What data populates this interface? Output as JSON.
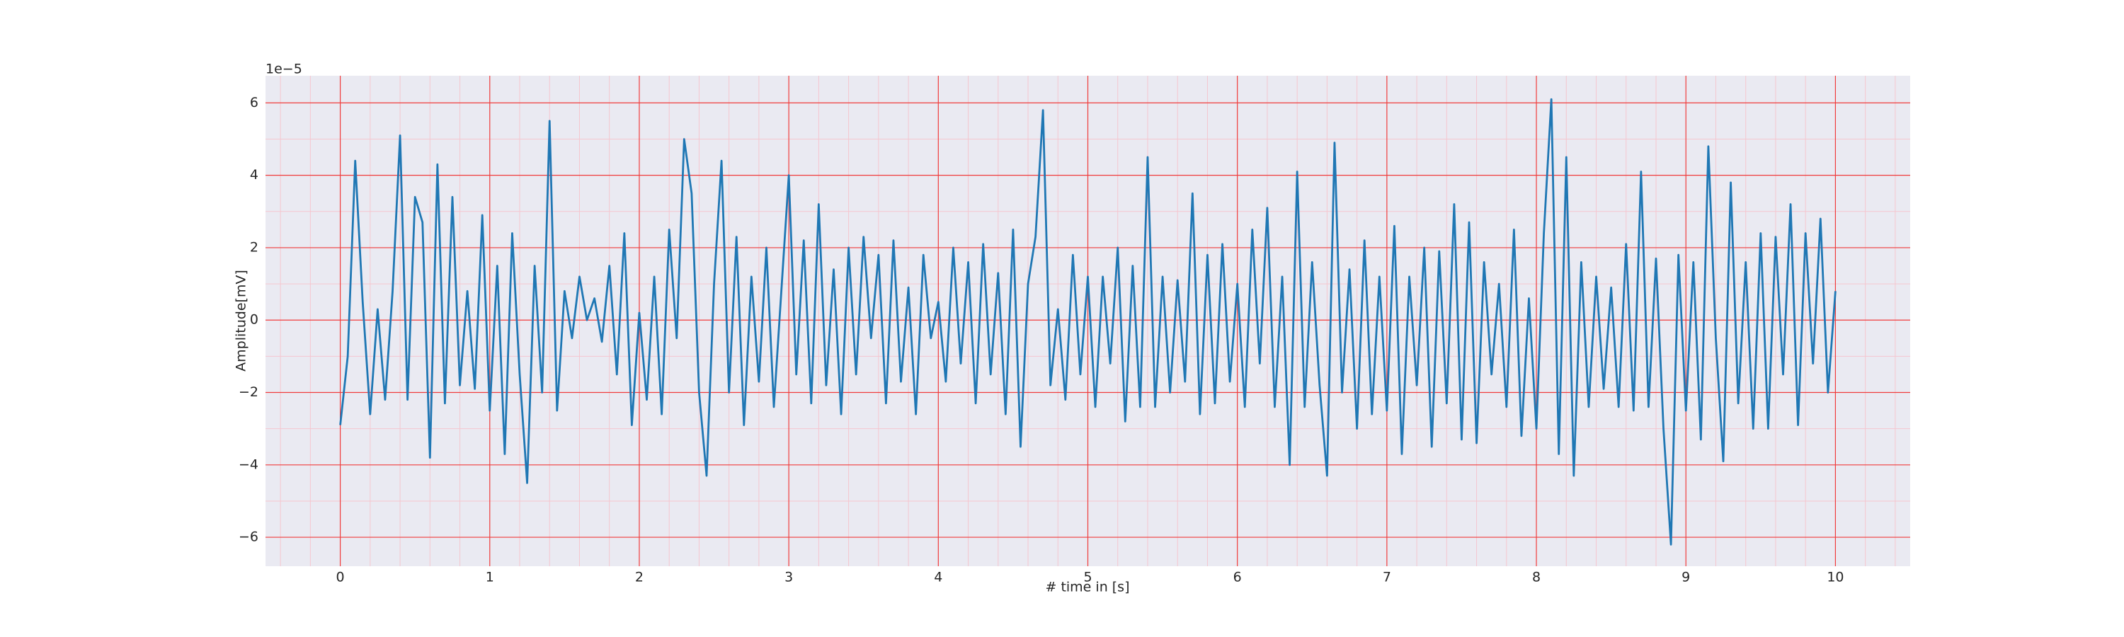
{
  "chart_data": {
    "type": "line",
    "xlabel": "# time in [s]",
    "ylabel": "Amplitude[mV]",
    "offset_text": "1e−5",
    "grid": true,
    "minor_grid": true,
    "xlim": [
      -0.5,
      10.5
    ],
    "ylim": [
      -6.8,
      6.75
    ],
    "xticks": [
      0,
      1,
      2,
      3,
      4,
      5,
      6,
      7,
      8,
      9,
      10
    ],
    "yticks": [
      {
        "value": -6,
        "label": "−6"
      },
      {
        "value": -4,
        "label": "−4"
      },
      {
        "value": -2,
        "label": "−2"
      },
      0,
      2,
      4,
      6
    ],
    "xminorticks": [
      -0.4,
      -0.2,
      0.2,
      0.4,
      0.6,
      0.8,
      1.2,
      1.4,
      1.6,
      1.8,
      2.2,
      2.4,
      2.6,
      2.8,
      3.2,
      3.4,
      3.6,
      3.8,
      4.2,
      4.4,
      4.6,
      4.8,
      5.2,
      5.4,
      5.6,
      5.8,
      6.2,
      6.4,
      6.6,
      6.8,
      7.2,
      7.4,
      7.6,
      7.8,
      8.2,
      8.4,
      8.6,
      8.8,
      9.2,
      9.4,
      9.6,
      9.8,
      10.2,
      10.4
    ],
    "yminorticks": [
      -5,
      -3,
      -1,
      1,
      3,
      5
    ],
    "series": [
      {
        "color": "#1f77b4",
        "x": [
          0,
          0.05,
          0.1,
          0.15,
          0.2,
          0.25,
          0.3,
          0.35,
          0.4,
          0.45,
          0.5,
          0.55,
          0.6,
          0.65,
          0.7,
          0.75,
          0.8,
          0.85,
          0.9,
          0.95,
          1,
          1.05,
          1.1,
          1.15,
          1.2,
          1.25,
          1.3,
          1.35,
          1.4,
          1.45,
          1.5,
          1.55,
          1.6,
          1.65,
          1.7,
          1.75,
          1.8,
          1.85,
          1.9,
          1.95,
          2,
          2.05,
          2.1,
          2.15,
          2.2,
          2.25,
          2.3,
          2.35,
          2.4,
          2.45,
          2.5,
          2.55,
          2.6,
          2.65,
          2.7,
          2.75,
          2.8,
          2.85,
          2.9,
          2.95,
          3,
          3.05,
          3.1,
          3.15,
          3.2,
          3.25,
          3.3,
          3.35,
          3.4,
          3.45,
          3.5,
          3.55,
          3.6,
          3.65,
          3.7,
          3.75,
          3.8,
          3.85,
          3.9,
          3.95,
          4,
          4.05,
          4.1,
          4.15,
          4.2,
          4.25,
          4.3,
          4.35,
          4.4,
          4.45,
          4.5,
          4.55,
          4.6,
          4.65,
          4.7,
          4.75,
          4.8,
          4.85,
          4.9,
          4.95,
          5,
          5.05,
          5.1,
          5.15,
          5.2,
          5.25,
          5.3,
          5.35,
          5.4,
          5.45,
          5.5,
          5.55,
          5.6,
          5.65,
          5.7,
          5.75,
          5.8,
          5.85,
          5.9,
          5.95,
          6,
          6.05,
          6.1,
          6.15,
          6.2,
          6.25,
          6.3,
          6.35,
          6.4,
          6.45,
          6.5,
          6.55,
          6.6,
          6.65,
          6.7,
          6.75,
          6.8,
          6.85,
          6.9,
          6.95,
          7,
          7.05,
          7.1,
          7.15,
          7.2,
          7.25,
          7.3,
          7.35,
          7.4,
          7.45,
          7.5,
          7.55,
          7.6,
          7.65,
          7.7,
          7.75,
          7.8,
          7.85,
          7.9,
          7.95,
          8,
          8.05,
          8.1,
          8.15,
          8.2,
          8.25,
          8.3,
          8.35,
          8.4,
          8.45,
          8.5,
          8.55,
          8.6,
          8.65,
          8.7,
          8.75,
          8.8,
          8.85,
          8.9,
          8.95,
          9,
          9.05,
          9.1,
          9.15,
          9.2,
          9.25,
          9.3,
          9.35,
          9.4,
          9.45,
          9.5,
          9.55,
          9.6,
          9.65,
          9.7,
          9.75,
          9.8,
          9.85,
          9.9,
          9.95,
          10
        ],
        "values": [
          -2.9,
          -1.0,
          4.4,
          0.5,
          -2.6,
          0.3,
          -2.2,
          0.8,
          5.1,
          -2.2,
          3.4,
          2.7,
          -3.8,
          4.3,
          -2.3,
          3.4,
          -1.8,
          0.8,
          -1.9,
          2.9,
          -2.5,
          1.5,
          -3.7,
          2.4,
          -1.5,
          -4.5,
          1.5,
          -2.0,
          5.5,
          -2.5,
          0.8,
          -0.5,
          1.2,
          0.0,
          0.6,
          -0.6,
          1.5,
          -1.5,
          2.4,
          -2.9,
          0.2,
          -2.2,
          1.2,
          -2.6,
          2.5,
          -0.5,
          5.0,
          3.5,
          -2.0,
          -4.3,
          1.0,
          4.4,
          -2.0,
          2.3,
          -2.9,
          1.2,
          -1.7,
          2.0,
          -2.4,
          0.8,
          4.0,
          -1.5,
          2.2,
          -2.3,
          3.2,
          -1.8,
          1.4,
          -2.6,
          2.0,
          -1.5,
          2.3,
          -0.5,
          1.8,
          -2.3,
          2.2,
          -1.7,
          0.9,
          -2.6,
          1.8,
          -0.5,
          0.5,
          -1.7,
          2.0,
          -1.2,
          1.6,
          -2.3,
          2.1,
          -1.5,
          1.3,
          -2.6,
          2.5,
          -3.5,
          1.0,
          2.3,
          5.8,
          -1.8,
          0.3,
          -2.2,
          1.8,
          -1.5,
          1.2,
          -2.4,
          1.2,
          -1.2,
          2.0,
          -2.8,
          1.5,
          -2.4,
          4.5,
          -2.4,
          1.2,
          -2.0,
          1.1,
          -1.7,
          3.5,
          -2.6,
          1.8,
          -2.3,
          2.1,
          -1.7,
          1.0,
          -2.4,
          2.5,
          -1.2,
          3.1,
          -2.4,
          1.2,
          -4.0,
          4.1,
          -2.4,
          1.6,
          -1.8,
          -4.3,
          4.9,
          -2.0,
          1.4,
          -3.0,
          2.2,
          -2.6,
          1.2,
          -2.5,
          2.6,
          -3.7,
          1.2,
          -1.8,
          2.0,
          -3.5,
          1.9,
          -2.3,
          3.2,
          -3.3,
          2.7,
          -3.4,
          1.6,
          -1.5,
          1.0,
          -2.4,
          2.5,
          -3.2,
          0.6,
          -3.0,
          2.4,
          6.1,
          -3.7,
          4.5,
          -4.3,
          1.6,
          -2.4,
          1.2,
          -1.9,
          0.9,
          -2.4,
          2.1,
          -2.5,
          4.1,
          -2.4,
          1.7,
          -3.0,
          -6.2,
          1.8,
          -2.5,
          1.6,
          -3.3,
          4.8,
          -0.5,
          -3.9,
          3.8,
          -2.3,
          1.6,
          -3.0,
          2.4,
          -3.0,
          2.3,
          -1.5,
          3.2,
          -2.9,
          2.4,
          -1.2,
          2.8,
          -2.0,
          0.8
        ]
      }
    ]
  }
}
